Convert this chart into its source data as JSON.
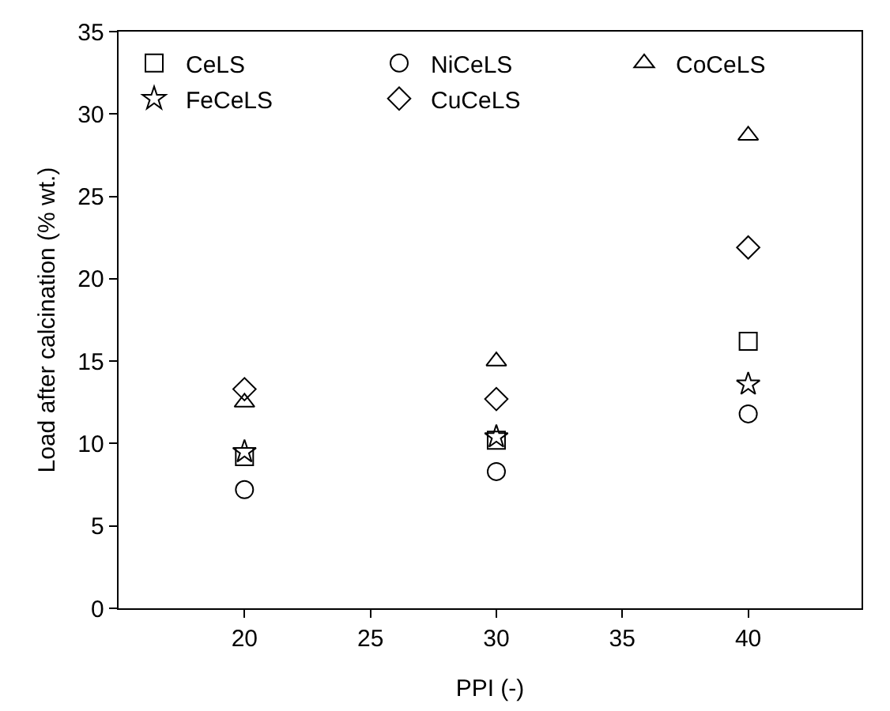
{
  "chart_data": {
    "type": "scatter",
    "xlabel": "PPI (-)",
    "ylabel": "Load after calcination (% wt.)",
    "x": [
      20,
      30,
      40
    ],
    "series": [
      {
        "name": "CeLS",
        "color": "#000000",
        "marker": "square",
        "values": [
          9.2,
          10.2,
          16.2
        ]
      },
      {
        "name": "NiCeLS",
        "color": "#000000",
        "marker": "circle",
        "values": [
          7.2,
          8.3,
          11.8
        ]
      },
      {
        "name": "CoCeLS",
        "color": "#000000",
        "marker": "triangle",
        "values": [
          12.5,
          15.0,
          28.7
        ]
      },
      {
        "name": "FeCeLS",
        "color": "#000000",
        "marker": "star",
        "values": [
          9.5,
          10.4,
          13.6
        ]
      },
      {
        "name": "CuCeLS",
        "color": "#000000",
        "marker": "diamond",
        "values": [
          13.3,
          12.7,
          21.9
        ]
      }
    ],
    "xlim": [
      15,
      44.5
    ],
    "xticks": [
      20,
      25,
      30,
      35,
      40
    ],
    "ylim": [
      0,
      35
    ],
    "yticks": [
      0,
      5,
      10,
      15,
      20,
      25,
      30,
      35
    ],
    "grid": false,
    "legend": "top"
  }
}
